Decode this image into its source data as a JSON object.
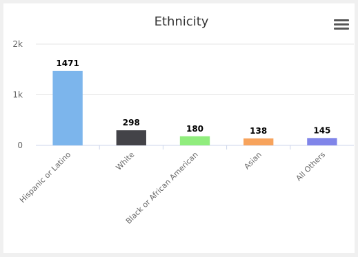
{
  "chart_data": {
    "type": "bar",
    "title": "Ethnicity",
    "categories": [
      "Hispanic or Latino",
      "White",
      "Black or African American",
      "Asian",
      "All Others"
    ],
    "values": [
      1471,
      298,
      180,
      138,
      145
    ],
    "colors": [
      "#7cb5ec",
      "#434348",
      "#90ed7d",
      "#f7a35c",
      "#8085e9"
    ],
    "ylim": [
      0,
      2000
    ],
    "yticks": [
      {
        "value": 0,
        "label": "0"
      },
      {
        "value": 1000,
        "label": "1k"
      },
      {
        "value": 2000,
        "label": "2k"
      }
    ],
    "grid": true,
    "xlabel": "",
    "ylabel": ""
  },
  "toolbar": {
    "menu_icon": "hamburger-menu-icon"
  }
}
